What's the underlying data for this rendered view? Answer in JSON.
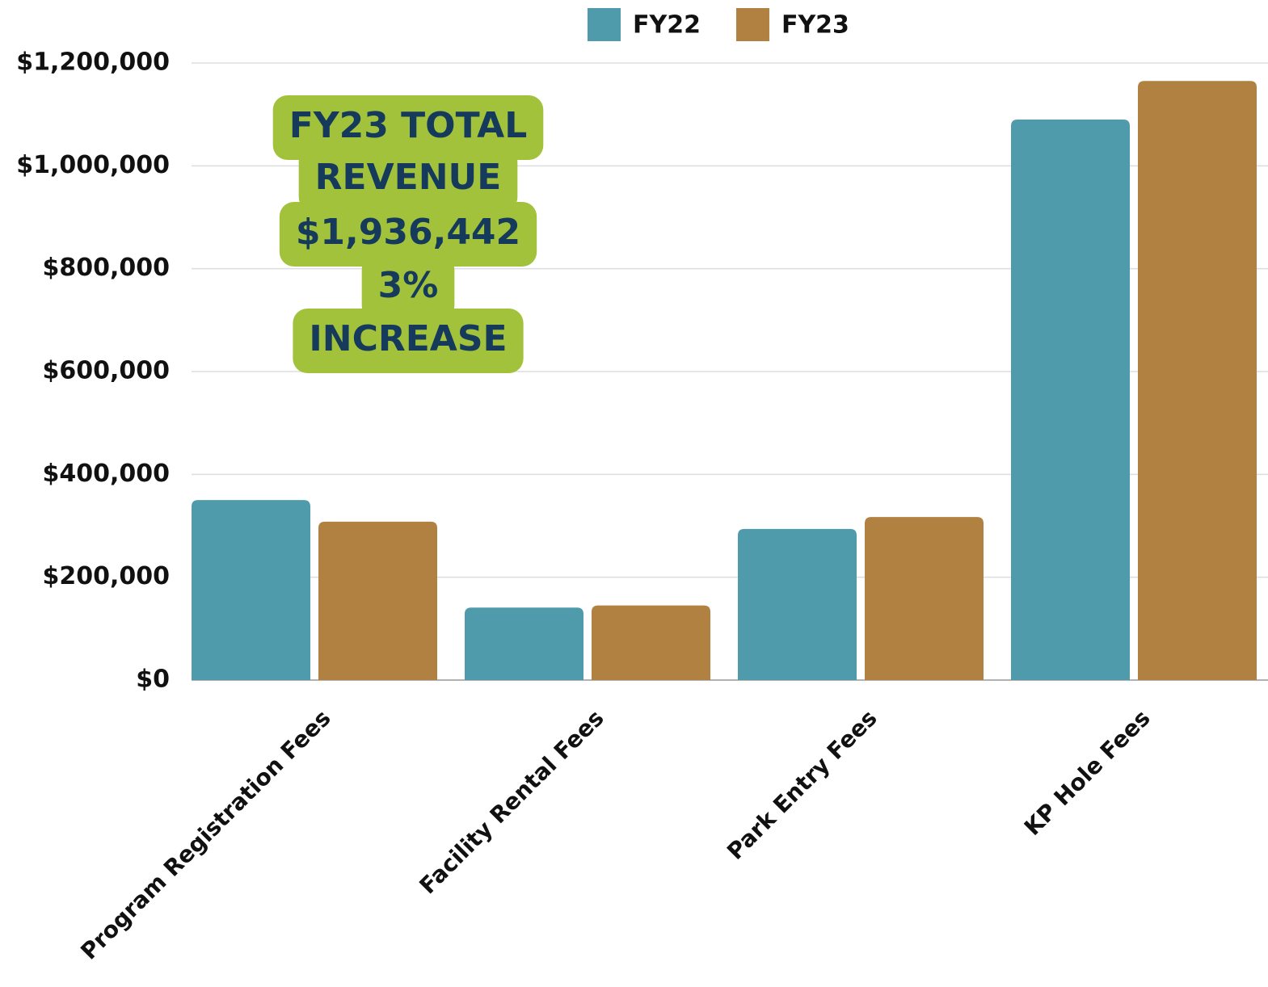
{
  "chart_data": {
    "type": "bar",
    "categories": [
      "Program Registration Fees",
      "Facility Rental Fees",
      "Park Entry Fees",
      "KP Hole Fees"
    ],
    "series": [
      {
        "name": "FY22",
        "color": "#4f9bab",
        "values": [
          350000,
          141000,
          294000,
          1090000
        ]
      },
      {
        "name": "FY23",
        "color": "#b08141",
        "values": [
          308000,
          145000,
          317000,
          1165000
        ]
      }
    ],
    "ylim": [
      0,
      1200000
    ],
    "yticks": [
      {
        "value": 0,
        "label": "$0"
      },
      {
        "value": 200000,
        "label": "$200,000"
      },
      {
        "value": 400000,
        "label": "$400,000"
      },
      {
        "value": 600000,
        "label": "$600,000"
      },
      {
        "value": 800000,
        "label": "$800,000"
      },
      {
        "value": 1000000,
        "label": "$1,000,000"
      },
      {
        "value": 1200000,
        "label": "$1,200,000"
      }
    ],
    "grid": true,
    "legend": "top",
    "annotation": [
      "FY23 TOTAL",
      "REVENUE",
      "$1,936,442",
      "3%",
      "INCREASE"
    ]
  }
}
